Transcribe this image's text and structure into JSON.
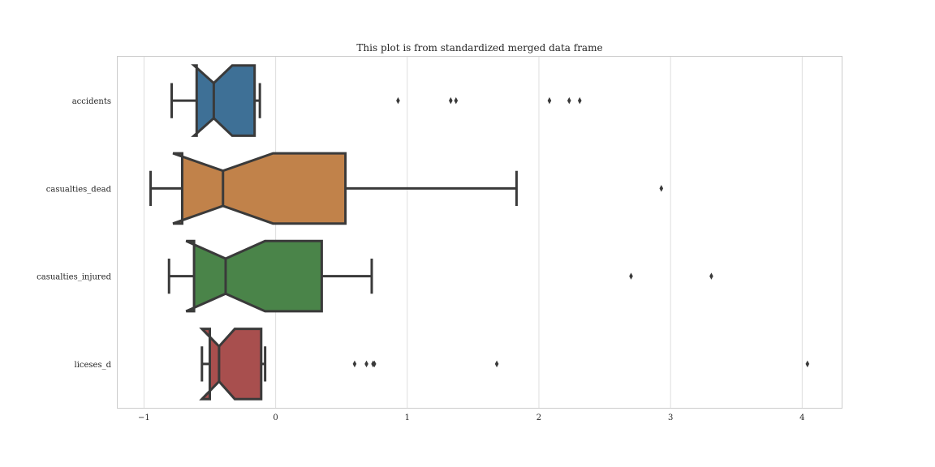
{
  "chart_data": {
    "type": "boxplot",
    "orientation": "horizontal",
    "notched": true,
    "title": "This plot is from standardized merged data frame",
    "xlabel": "",
    "ylabel": "",
    "xlim": [
      -1.2,
      4.3
    ],
    "xticks": [
      -1,
      0,
      1,
      2,
      3,
      4
    ],
    "xtick_labels": [
      "−1",
      "0",
      "1",
      "2",
      "3",
      "4"
    ],
    "grid": "vertical",
    "categories": [
      "accidents",
      "casualties_dead",
      "casualties_injured",
      "liceses_d"
    ],
    "boxes": [
      {
        "label": "accidents",
        "color": "#3e7096",
        "whisker_low": -0.79,
        "q1": -0.6,
        "median": -0.47,
        "q3": -0.16,
        "whisker_high": -0.12,
        "notch_low": -0.62,
        "notch_high": -0.33,
        "outliers": [
          0.93,
          1.33,
          1.37,
          2.08,
          2.23,
          2.31
        ]
      },
      {
        "label": "casualties_dead",
        "color": "#c1824a",
        "whisker_low": -0.95,
        "q1": -0.71,
        "median": -0.4,
        "q3": 0.53,
        "whisker_high": 1.83,
        "notch_low": -0.78,
        "notch_high": -0.02,
        "outliers": [
          2.93
        ]
      },
      {
        "label": "casualties_injured",
        "color": "#4a8449",
        "whisker_low": -0.81,
        "q1": -0.62,
        "median": -0.38,
        "q3": 0.35,
        "whisker_high": 0.73,
        "notch_low": -0.68,
        "notch_high": -0.08,
        "outliers": [
          2.7,
          3.31
        ]
      },
      {
        "label": "liceses_d",
        "color": "#a84f4e",
        "whisker_low": -0.56,
        "q1": -0.5,
        "median": -0.43,
        "q3": -0.11,
        "whisker_high": -0.08,
        "notch_low": -0.56,
        "notch_high": -0.31,
        "outliers": [
          0.6,
          0.69,
          0.75,
          0.74,
          1.68,
          4.04
        ]
      }
    ]
  }
}
